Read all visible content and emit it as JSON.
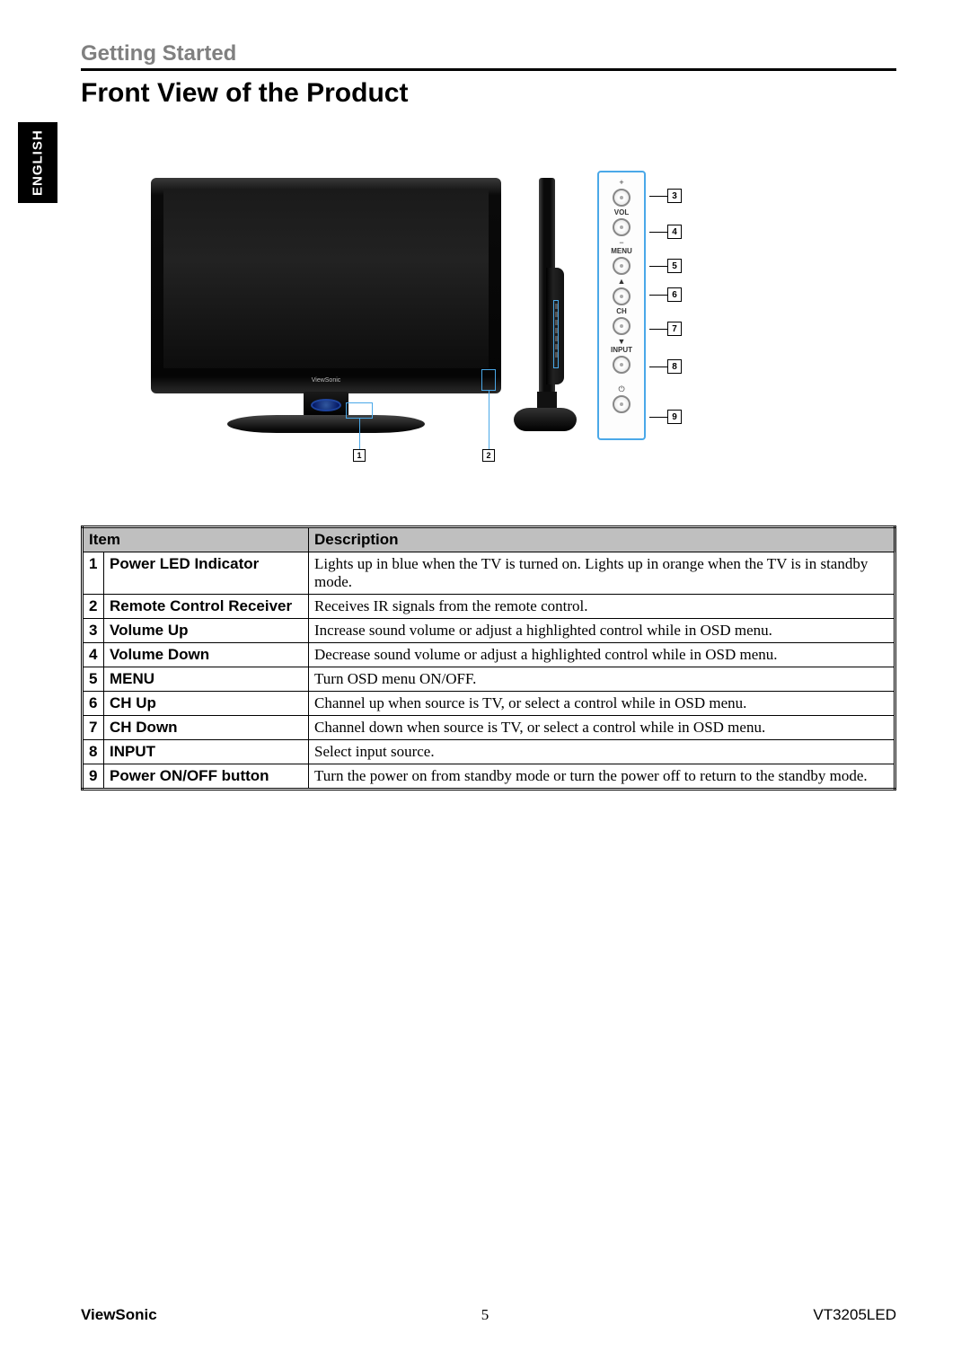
{
  "language_tab": "ENGLISH",
  "section_label": "Getting Started",
  "page_title": "Front View of the Product",
  "tv_brand": "ViewSonic",
  "panel": {
    "vol_label": "VOL",
    "menu_label": "MENU",
    "ch_label": "CH",
    "input_label": "INPUT",
    "plus": "+",
    "minus": "−",
    "up": "▲",
    "down": "▼",
    "power": "⏻"
  },
  "callouts": {
    "c1": "1",
    "c2": "2",
    "c3": "3",
    "c4": "4",
    "c5": "5",
    "c6": "6",
    "c7": "7",
    "c8": "8",
    "c9": "9"
  },
  "table": {
    "header_item": "Item",
    "header_desc": "Description",
    "rows": [
      {
        "n": "1",
        "item": "Power LED Indicator",
        "desc": "Lights up in blue when the TV is turned on. Lights up in orange when the TV is in standby mode."
      },
      {
        "n": "2",
        "item": "Remote Control Receiver",
        "desc": "Receives IR signals from the remote control."
      },
      {
        "n": "3",
        "item": "Volume Up",
        "desc": "Increase sound volume or adjust a highlighted control while in OSD menu."
      },
      {
        "n": "4",
        "item": "Volume Down",
        "desc": "Decrease sound volume or adjust a highlighted control while in OSD menu."
      },
      {
        "n": "5",
        "item": "MENU",
        "desc": "Turn OSD menu ON/OFF."
      },
      {
        "n": "6",
        "item": "CH Up",
        "desc": "Channel up when source is TV, or select a control while in OSD menu."
      },
      {
        "n": "7",
        "item": "CH Down",
        "desc": "Channel down when source is TV, or select a control while in OSD menu."
      },
      {
        "n": "8",
        "item": "INPUT",
        "desc": "Select input source."
      },
      {
        "n": "9",
        "item": "Power ON/OFF button",
        "desc": "Turn the power on from standby mode or turn the power off to return to the standby mode."
      }
    ]
  },
  "footer": {
    "brand": "ViewSonic",
    "page": "5",
    "model": "VT3205LED"
  },
  "colors": {
    "highlight": "#4aa8e8",
    "header_bg": "#bfbfbf",
    "gray_text": "#808080"
  }
}
